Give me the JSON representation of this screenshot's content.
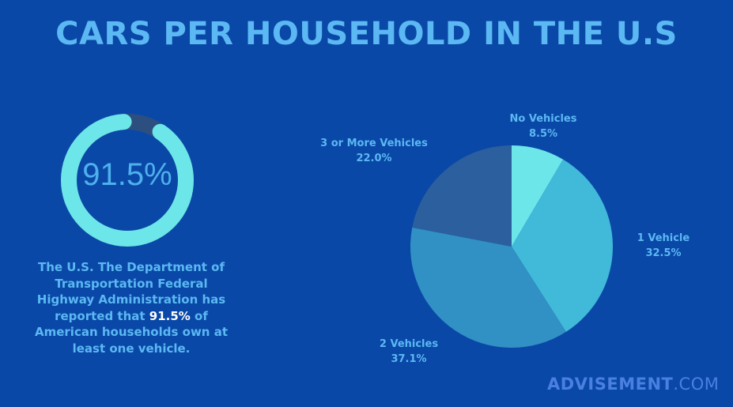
{
  "header": {
    "title": "CARS PER HOUSEHOLD IN THE U.S"
  },
  "stat": {
    "value": 91.5,
    "value_label": "91.5%",
    "ring_color": "#6ce6e8",
    "ring_remainder_color": "#2d4f80"
  },
  "description": {
    "text_before": "The U.S. The Department of Transportation Federal Highway Administration has reported that ",
    "highlight": "91.5%",
    "text_after": " of American households own at least one vehicle."
  },
  "chart_data": {
    "type": "pie",
    "start": "top",
    "direction": "clockwise",
    "slices": [
      {
        "label": "No Vehicles",
        "value": 8.5,
        "value_label": "8.5%",
        "color": "#6ce6e8"
      },
      {
        "label": "1 Vehicle",
        "value": 32.5,
        "value_label": "32.5%",
        "color": "#41b9d9"
      },
      {
        "label": "2 Vehicles",
        "value": 37.1,
        "value_label": "37.1%",
        "color": "#3190c4"
      },
      {
        "label": "3 or More Vehicles",
        "value": 22.0,
        "value_label": "22.0%",
        "color": "#2c5f9e"
      }
    ]
  },
  "brand": {
    "part1": "ADVISEMENT",
    "part2": ".COM"
  }
}
